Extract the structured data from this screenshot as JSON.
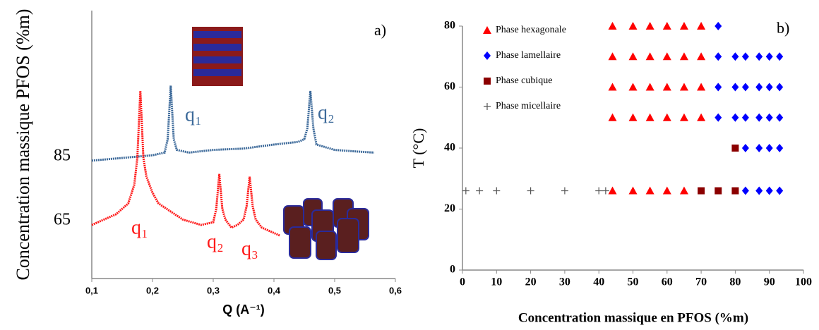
{
  "chart_data": [
    {
      "type": "line",
      "ylabel": "Concentration massique PFOS (%m)",
      "xlabel": "Q (A⁻¹)",
      "xlim": [
        0.1,
        0.6
      ],
      "xticks": [
        {
          "value": 0.1,
          "label": "0,1"
        },
        {
          "value": 0.2,
          "label": "0,2"
        },
        {
          "value": 0.3,
          "label": "0,3"
        },
        {
          "value": 0.4,
          "label": "0,4"
        },
        {
          "value": 0.5,
          "label": "0,5"
        },
        {
          "value": 0.6,
          "label": "0,6"
        }
      ],
      "ylim": [
        0,
        100
      ],
      "annotations": [
        "a)",
        "q₁",
        "q₂",
        "85",
        "65",
        "q₁",
        "q₂",
        "q₃"
      ],
      "series": [
        {
          "color": "#3d6a9a",
          "x": [
            0.1,
            0.15,
            0.2,
            0.22,
            0.225,
            0.23,
            0.235,
            0.24,
            0.26,
            0.3,
            0.35,
            0.4,
            0.44,
            0.45,
            0.455,
            0.46,
            0.465,
            0.47,
            0.5,
            0.53,
            0.565
          ],
          "values": [
            44,
            45,
            46,
            47,
            52,
            72,
            52,
            48,
            47,
            48,
            48.5,
            50,
            51,
            52,
            56,
            70,
            56,
            50,
            48,
            47.5,
            47
          ]
        },
        {
          "color": "#ff1a1a",
          "x": [
            0.1,
            0.12,
            0.14,
            0.16,
            0.17,
            0.175,
            0.18,
            0.185,
            0.19,
            0.2,
            0.21,
            0.23,
            0.25,
            0.28,
            0.3,
            0.305,
            0.31,
            0.315,
            0.32,
            0.33,
            0.34,
            0.35,
            0.355,
            0.36,
            0.365,
            0.37,
            0.38,
            0.4,
            0.41
          ],
          "values": [
            20,
            22,
            24,
            28,
            35,
            45,
            70,
            45,
            38,
            32,
            28,
            25,
            22,
            20,
            21,
            26,
            39,
            26,
            22,
            19,
            20,
            22,
            27,
            38,
            27,
            22,
            19,
            17,
            16
          ]
        }
      ]
    },
    {
      "type": "scatter",
      "ylabel": "T (°C)",
      "xlabel": "Concentration massique en PFOS (%m)",
      "annotations": [
        "b)"
      ],
      "xlim": [
        0,
        100
      ],
      "xticks": [
        0,
        10,
        20,
        30,
        40,
        50,
        60,
        70,
        80,
        90,
        100
      ],
      "ylim": [
        0,
        80
      ],
      "yticks": [
        0,
        20,
        40,
        60,
        80
      ],
      "legend": "upper left",
      "series": [
        {
          "name": "Phase hexagonale",
          "color": "#ff0000",
          "marker": "triangle",
          "x": [
            44,
            50,
            55,
            60,
            65,
            70,
            44,
            50,
            55,
            60,
            65,
            70,
            44,
            50,
            55,
            60,
            65,
            70,
            44,
            50,
            55,
            60,
            65,
            70,
            44,
            50,
            55,
            60,
            65
          ],
          "values": [
            80,
            80,
            80,
            80,
            80,
            80,
            70,
            70,
            70,
            70,
            70,
            70,
            60,
            60,
            60,
            60,
            60,
            60,
            50,
            50,
            50,
            50,
            50,
            50,
            26,
            26,
            26,
            26,
            26
          ]
        },
        {
          "name": "Phase lamellaire",
          "color": "#0000ff",
          "marker": "diamond",
          "x": [
            75,
            75,
            80,
            83,
            87,
            90,
            93,
            75,
            80,
            83,
            87,
            90,
            93,
            75,
            80,
            83,
            87,
            90,
            93,
            83,
            87,
            90,
            93,
            83,
            87,
            90,
            93
          ],
          "values": [
            80,
            70,
            70,
            70,
            70,
            70,
            70,
            60,
            60,
            60,
            60,
            60,
            60,
            50,
            50,
            50,
            50,
            50,
            50,
            40,
            40,
            40,
            40,
            26,
            26,
            26,
            26
          ]
        },
        {
          "name": "Phase cubique",
          "color": "#8b0000",
          "marker": "square",
          "x": [
            80,
            70,
            75,
            80
          ],
          "values": [
            40,
            26,
            26,
            26
          ]
        },
        {
          "name": "Phase micellaire",
          "color": "#555555",
          "marker": "plus",
          "x": [
            1,
            5,
            10,
            20,
            30,
            40,
            42
          ],
          "values": [
            26,
            26,
            26,
            26,
            26,
            26,
            26
          ]
        }
      ]
    }
  ]
}
